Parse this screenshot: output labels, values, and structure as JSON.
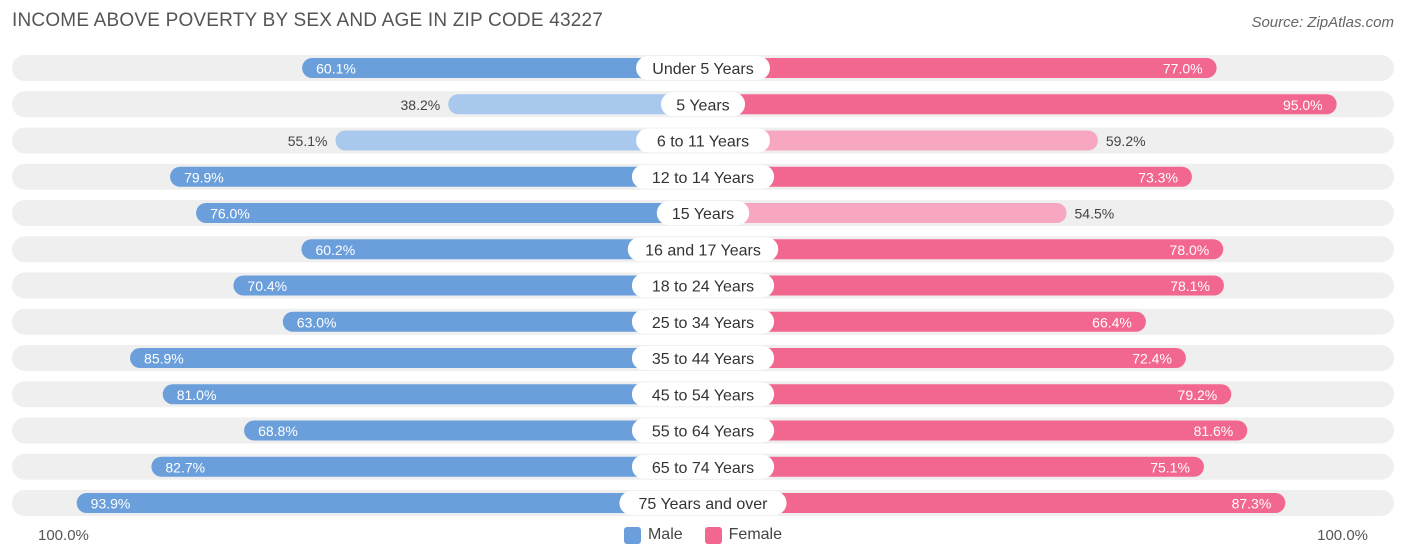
{
  "header": {
    "title": "INCOME ABOVE POVERTY BY SEX AND AGE IN ZIP CODE 43227",
    "source": "Source: ZipAtlas.com"
  },
  "axis": {
    "left_label": "100.0%",
    "right_label": "100.0%"
  },
  "legend": {
    "male_label": "Male",
    "female_label": "Female"
  },
  "colors": {
    "male_dark": "#6a9fdb",
    "male_light": "#a9c8ee",
    "female_dark": "#f2678f",
    "female_light": "#f7a7c0",
    "track": "#efefef"
  },
  "chart_data": {
    "type": "bar",
    "orientation": "diverging-horizontal",
    "xlim": [
      0,
      100
    ],
    "unit": "%",
    "categories": [
      "Under 5 Years",
      "5 Years",
      "6 to 11 Years",
      "12 to 14 Years",
      "15 Years",
      "16 and 17 Years",
      "18 to 24 Years",
      "25 to 34 Years",
      "35 to 44 Years",
      "45 to 54 Years",
      "55 to 64 Years",
      "65 to 74 Years",
      "75 Years and over"
    ],
    "series": [
      {
        "name": "Male",
        "values": [
          60.1,
          38.2,
          55.1,
          79.9,
          76.0,
          60.2,
          70.4,
          63.0,
          85.9,
          81.0,
          68.8,
          82.7,
          93.9
        ]
      },
      {
        "name": "Female",
        "values": [
          77.0,
          95.0,
          59.2,
          73.3,
          54.5,
          78.0,
          78.1,
          66.4,
          72.4,
          79.2,
          81.6,
          75.1,
          87.3
        ]
      }
    ],
    "labels": {
      "male": [
        "60.1%",
        "38.2%",
        "55.1%",
        "79.9%",
        "76.0%",
        "60.2%",
        "70.4%",
        "63.0%",
        "85.9%",
        "81.0%",
        "68.8%",
        "82.7%",
        "93.9%"
      ],
      "female": [
        "77.0%",
        "95.0%",
        "59.2%",
        "73.3%",
        "54.5%",
        "78.0%",
        "78.1%",
        "66.4%",
        "72.4%",
        "79.2%",
        "81.6%",
        "75.1%",
        "87.3%"
      ]
    },
    "legend_position": "bottom-center",
    "grid": false
  }
}
